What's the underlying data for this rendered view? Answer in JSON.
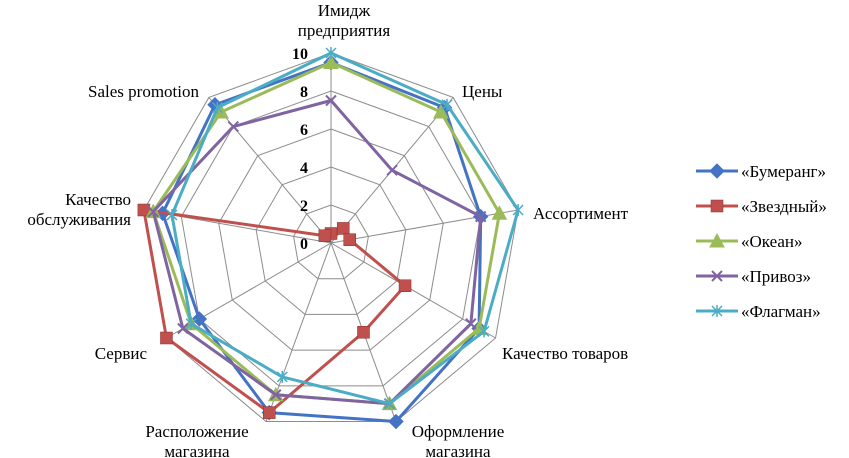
{
  "chart_data": {
    "type": "radar",
    "title": "",
    "categories": [
      [
        "Имидж",
        "предприятия"
      ],
      [
        "Цены"
      ],
      [
        "Ассортимент"
      ],
      [
        "Качество товаров"
      ],
      [
        "Оформление",
        "магазина"
      ],
      [
        "Расположение",
        "магазина"
      ],
      [
        "Сервис"
      ],
      [
        "Качество",
        "обслуживания"
      ],
      [
        "Sales promotion"
      ]
    ],
    "rlim": [
      0,
      10
    ],
    "ticks": [
      "0",
      "2",
      "4",
      "6",
      "8",
      "10"
    ],
    "grid": true,
    "legend_position": "right",
    "series": [
      {
        "name": "«Бумеранг»",
        "color": "#4472C4",
        "marker": "diamond",
        "values": [
          9.5,
          9.3,
          8.0,
          9.0,
          10.0,
          9.5,
          8.0,
          9.0,
          9.5
        ]
      },
      {
        "name": "«Звездный»",
        "color": "#C0504D",
        "marker": "square",
        "values": [
          0.5,
          1.0,
          1.0,
          4.5,
          5.0,
          9.5,
          10.0,
          10.0,
          0.5
        ]
      },
      {
        "name": "«Океан»",
        "color": "#9BBB59",
        "marker": "triangle",
        "values": [
          9.5,
          9.0,
          9.0,
          9.0,
          9.0,
          8.5,
          8.5,
          9.5,
          9.0
        ]
      },
      {
        "name": "«Привоз»",
        "color": "#8064A2",
        "marker": "x",
        "values": [
          7.5,
          5.0,
          8.0,
          8.5,
          9.0,
          8.5,
          9.0,
          9.5,
          8.0
        ]
      },
      {
        "name": "«Флагман»",
        "color": "#4BACC6",
        "marker": "star",
        "values": [
          10.0,
          9.5,
          10.0,
          9.3,
          9.0,
          7.5,
          8.5,
          8.5,
          9.3
        ]
      }
    ]
  }
}
